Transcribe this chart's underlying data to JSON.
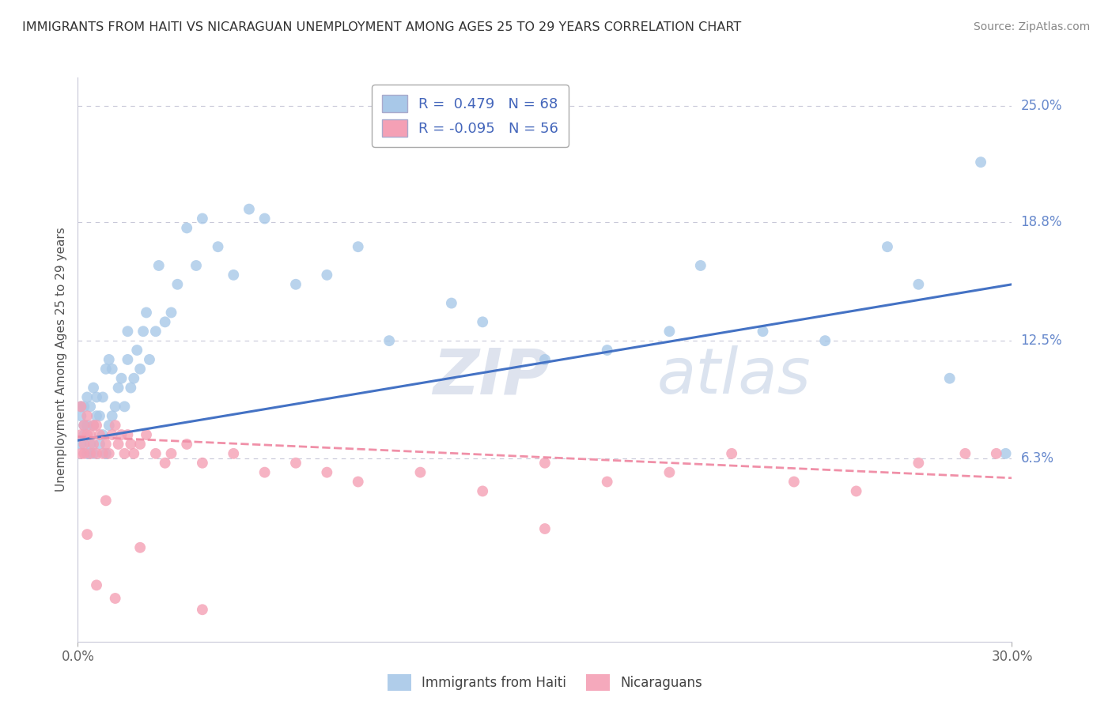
{
  "title": "IMMIGRANTS FROM HAITI VS NICARAGUAN UNEMPLOYMENT AMONG AGES 25 TO 29 YEARS CORRELATION CHART",
  "source": "Source: ZipAtlas.com",
  "ylabel": "Unemployment Among Ages 25 to 29 years",
  "xlim": [
    0.0,
    0.3
  ],
  "ylim": [
    -0.035,
    0.265
  ],
  "ytick_positions": [
    0.0625,
    0.125,
    0.188,
    0.25
  ],
  "ytick_labels": [
    "6.3%",
    "12.5%",
    "18.8%",
    "25.0%"
  ],
  "xtick_positions": [
    0.0,
    0.3
  ],
  "xtick_labels": [
    "0.0%",
    "30.0%"
  ],
  "r_haiti": 0.479,
  "n_haiti": 68,
  "r_nicaraguan": -0.095,
  "n_nicaraguan": 56,
  "haiti_color": "#a8c8e8",
  "nicaraguan_color": "#f4a0b5",
  "haiti_line_color": "#4472c4",
  "nicaraguan_line_color": "#f090a8",
  "background_color": "#ffffff",
  "grid_color": "#c8c8d8",
  "haiti_trend_x": [
    0.0,
    0.3
  ],
  "haiti_trend_y": [
    0.072,
    0.155
  ],
  "nicaraguan_trend_x": [
    0.0,
    0.3
  ],
  "nicaraguan_trend_y": [
    0.074,
    0.052
  ],
  "haiti_scatter_x": [
    0.001,
    0.001,
    0.001,
    0.002,
    0.002,
    0.002,
    0.003,
    0.003,
    0.003,
    0.004,
    0.004,
    0.005,
    0.005,
    0.005,
    0.006,
    0.006,
    0.007,
    0.007,
    0.008,
    0.008,
    0.009,
    0.009,
    0.01,
    0.01,
    0.011,
    0.011,
    0.012,
    0.013,
    0.014,
    0.015,
    0.016,
    0.016,
    0.017,
    0.018,
    0.019,
    0.02,
    0.021,
    0.022,
    0.023,
    0.025,
    0.026,
    0.028,
    0.03,
    0.032,
    0.035,
    0.038,
    0.04,
    0.045,
    0.05,
    0.055,
    0.06,
    0.07,
    0.08,
    0.09,
    0.1,
    0.12,
    0.13,
    0.15,
    0.17,
    0.19,
    0.2,
    0.22,
    0.24,
    0.26,
    0.27,
    0.28,
    0.29,
    0.298
  ],
  "haiti_scatter_y": [
    0.07,
    0.085,
    0.09,
    0.075,
    0.08,
    0.09,
    0.065,
    0.08,
    0.095,
    0.07,
    0.09,
    0.065,
    0.08,
    0.1,
    0.085,
    0.095,
    0.07,
    0.085,
    0.075,
    0.095,
    0.065,
    0.11,
    0.08,
    0.115,
    0.085,
    0.11,
    0.09,
    0.1,
    0.105,
    0.09,
    0.115,
    0.13,
    0.1,
    0.105,
    0.12,
    0.11,
    0.13,
    0.14,
    0.115,
    0.13,
    0.165,
    0.135,
    0.14,
    0.155,
    0.185,
    0.165,
    0.19,
    0.175,
    0.16,
    0.195,
    0.19,
    0.155,
    0.16,
    0.175,
    0.125,
    0.145,
    0.135,
    0.115,
    0.12,
    0.13,
    0.165,
    0.13,
    0.125,
    0.175,
    0.155,
    0.105,
    0.22,
    0.065
  ],
  "nicaraguan_scatter_x": [
    0.001,
    0.001,
    0.001,
    0.002,
    0.002,
    0.002,
    0.003,
    0.003,
    0.004,
    0.004,
    0.005,
    0.005,
    0.006,
    0.006,
    0.007,
    0.008,
    0.009,
    0.01,
    0.011,
    0.012,
    0.013,
    0.014,
    0.015,
    0.016,
    0.017,
    0.018,
    0.02,
    0.022,
    0.025,
    0.028,
    0.03,
    0.035,
    0.04,
    0.05,
    0.06,
    0.07,
    0.09,
    0.11,
    0.13,
    0.15,
    0.17,
    0.19,
    0.21,
    0.23,
    0.25,
    0.27,
    0.285,
    0.295,
    0.003,
    0.006,
    0.009,
    0.012,
    0.02,
    0.04,
    0.08,
    0.15
  ],
  "nicaraguan_scatter_y": [
    0.075,
    0.09,
    0.065,
    0.07,
    0.08,
    0.065,
    0.075,
    0.085,
    0.065,
    0.075,
    0.07,
    0.08,
    0.065,
    0.08,
    0.075,
    0.065,
    0.07,
    0.065,
    0.075,
    0.08,
    0.07,
    0.075,
    0.065,
    0.075,
    0.07,
    0.065,
    0.07,
    0.075,
    0.065,
    0.06,
    0.065,
    0.07,
    0.06,
    0.065,
    0.055,
    0.06,
    0.05,
    0.055,
    0.045,
    0.06,
    0.05,
    0.055,
    0.065,
    0.05,
    0.045,
    0.06,
    0.065,
    0.065,
    0.022,
    -0.005,
    0.04,
    -0.012,
    0.015,
    -0.018,
    0.055,
    0.025
  ]
}
